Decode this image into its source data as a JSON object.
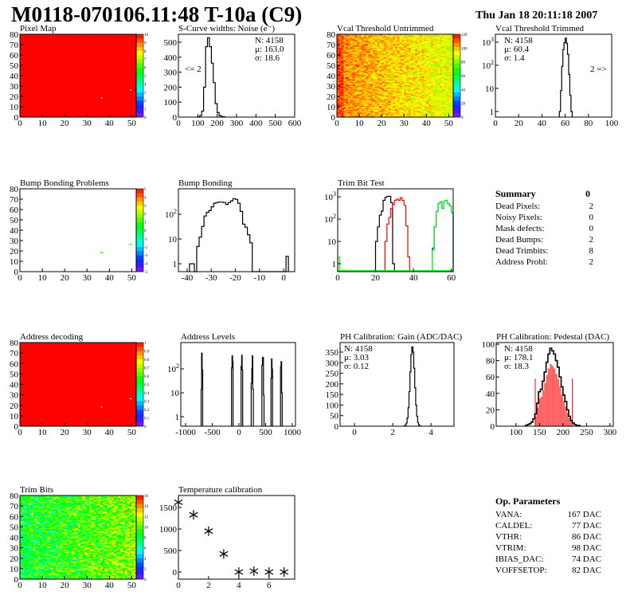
{
  "header": {
    "title": "M0118-070106.11:48 T-10a (C9)",
    "date": "Thu Jan 18 20:11:18 2007"
  },
  "summary": {
    "title": "Summary",
    "value": "0",
    "rows": [
      {
        "label": "Dead Pixels:",
        "value": "2"
      },
      {
        "label": "Noisy Pixels:",
        "value": "0"
      },
      {
        "label": "Mask defects:",
        "value": "0"
      },
      {
        "label": "Dead Bumps:",
        "value": "2"
      },
      {
        "label": "Dead Trimbits:",
        "value": "8"
      },
      {
        "label": "Address Probl:",
        "value": "2"
      }
    ]
  },
  "op_parameters": {
    "title": "Op. Parameters",
    "rows": [
      {
        "label": "VANA:",
        "value": "167 DAC"
      },
      {
        "label": "CALDEL:",
        "value": "77 DAC"
      },
      {
        "label": "VTHR:",
        "value": "86 DAC"
      },
      {
        "label": "VTRIM:",
        "value": "98 DAC"
      },
      {
        "label": "IBIAS_DAC:",
        "value": "74 DAC"
      },
      {
        "label": "VOFFSETOP:",
        "value": "82 DAC"
      }
    ]
  },
  "chart_data": [
    {
      "id": "pixel_map",
      "type": "heatmap",
      "title": "Pixel Map",
      "xlim": [
        0,
        52
      ],
      "ylim": [
        0,
        80
      ],
      "zlim": [
        0,
        10
      ],
      "xticks": [
        0,
        10,
        20,
        30,
        40,
        50
      ],
      "yticks": [
        0,
        10,
        20,
        30,
        40,
        50,
        60,
        70,
        80
      ],
      "zticks": [
        "0",
        "1",
        "2",
        "3",
        "4",
        "5",
        "6",
        "7",
        "8",
        "9",
        "10"
      ],
      "base_value": 10,
      "special_pixels": [
        {
          "col": 36,
          "row": 18,
          "value": null
        },
        {
          "col": 49,
          "row": 26,
          "value": null
        }
      ]
    },
    {
      "id": "noise",
      "type": "bar",
      "title": "S-Curve widths: Noise (e⁻)",
      "xlim": [
        0,
        600
      ],
      "ylim": [
        0,
        553
      ],
      "log": false,
      "xticks": [
        0,
        100,
        200,
        300,
        400,
        500,
        600
      ],
      "yticks": [
        0,
        100,
        200,
        300,
        400,
        500
      ],
      "series": [
        {
          "name": "noise",
          "color": "#000000",
          "bin_width": 10,
          "start": 100,
          "values": [
            2,
            10,
            40,
            200,
            470,
            530,
            470,
            360,
            230,
            90,
            30,
            10,
            4,
            2
          ]
        }
      ],
      "stats": [
        "N: 4158",
        "μ: 163.0",
        "σ: 18.6"
      ],
      "annotation": "<= 2"
    },
    {
      "id": "vcal_untrimmed",
      "type": "heatmap",
      "title": "Vcal Threshold Untrimmed",
      "xlim": [
        0,
        52
      ],
      "ylim": [
        0,
        80
      ],
      "zlim": [
        0,
        120
      ],
      "xticks": [
        0,
        10,
        20,
        30,
        40,
        50
      ],
      "yticks": [
        0,
        10,
        20,
        30,
        40,
        50,
        60,
        70,
        80
      ],
      "zticks": [
        "0",
        "20",
        "40",
        "60",
        "80",
        "100",
        "120"
      ],
      "gradient": {
        "mean_left": 106,
        "mean_right": 90,
        "spread": 9
      },
      "special_pixels": [
        {
          "col": 36,
          "row": 18,
          "value": null
        },
        {
          "col": 49,
          "row": 26,
          "value": null
        }
      ]
    },
    {
      "id": "vcal_trimmed",
      "type": "bar",
      "title": "Vcal Threshold Trimmed",
      "xlim": [
        0,
        100
      ],
      "ylim": [
        0.57,
        2200
      ],
      "log": true,
      "xticks": [
        0,
        20,
        40,
        60,
        80,
        100
      ],
      "yticks": [
        1,
        10,
        100,
        1000
      ],
      "ytick_labels": [
        "1",
        "10",
        "10^2",
        "10^3"
      ],
      "series": [
        {
          "name": "trimmed",
          "color": "#000000",
          "bin_width": 1,
          "start": 55,
          "values": [
            1,
            8,
            90,
            480,
            950,
            1500,
            900,
            300,
            40,
            5,
            1
          ]
        }
      ],
      "stats": [
        "N: 4158",
        "μ: 60.4",
        "σ:  1.4"
      ],
      "annotation": "2 =>"
    },
    {
      "id": "bump_map",
      "type": "heatmap",
      "title": "Bump Bonding Problems",
      "xlim": [
        0,
        52
      ],
      "ylim": [
        0,
        80
      ],
      "zlim": [
        -5,
        5
      ],
      "xticks": [
        0,
        10,
        20,
        30,
        40,
        50
      ],
      "yticks": [
        0,
        10,
        20,
        30,
        40,
        50,
        60,
        70,
        80
      ],
      "zticks": [
        "-5",
        "-4",
        "-3",
        "-2",
        "-1",
        "0",
        "1",
        "2",
        "3",
        "4",
        "5"
      ],
      "base_value": null,
      "special_pixels": [
        {
          "col": 36,
          "row": 18,
          "value": 1
        },
        {
          "col": 49,
          "row": 26,
          "value": 1
        }
      ]
    },
    {
      "id": "bump_bonding",
      "type": "bar",
      "title": "Bump Bonding",
      "xlim": [
        -43.6,
        4.6
      ],
      "ylim": [
        0.48,
        1070
      ],
      "log": true,
      "xticks": [
        -40,
        -30,
        -20,
        -10,
        0
      ],
      "yticks": [
        1,
        10,
        100
      ],
      "ytick_labels": [
        "1",
        "10",
        "10^2"
      ],
      "series": [
        {
          "name": "bump",
          "color": "#000000",
          "bin_width": 1,
          "start": -39,
          "values": [
            1,
            1,
            0,
            5,
            12,
            32,
            85,
            120,
            140,
            200,
            280,
            300,
            310,
            310,
            300,
            250,
            300,
            350,
            430,
            400,
            280,
            130,
            40,
            30,
            15,
            7,
            0,
            0,
            0,
            0,
            0,
            0,
            0,
            0,
            0,
            0,
            0,
            0,
            0,
            0,
            2
          ]
        }
      ]
    },
    {
      "id": "trim_bit_test",
      "type": "bar",
      "title": "Trim Bit Test",
      "xlim": [
        0,
        61
      ],
      "ylim": [
        0.44,
        2300
      ],
      "log": true,
      "xticks": [
        0,
        20,
        40,
        60
      ],
      "yticks": [
        1,
        10,
        100,
        1000
      ],
      "ytick_labels": [
        "1",
        "10",
        "10^2",
        "10^3"
      ],
      "series": [
        {
          "name": "trim bit 1",
          "color": "#000000",
          "bin_width": 1,
          "start": 20,
          "values": [
            10,
            45,
            150,
            230,
            700,
            950,
            1050,
            1050,
            550,
            1
          ]
        },
        {
          "name": "trim bit 2",
          "color": "#ff0000",
          "bin_width": 1,
          "start": 25,
          "values": [
            10,
            60,
            120,
            300,
            450,
            700,
            780,
            700,
            920,
            700,
            420,
            50,
            2
          ]
        },
        {
          "name": "trim bit 3",
          "color": "#0000ff",
          "bin_width": 1,
          "start": 50,
          "values": [
            5,
            45,
            220,
            500,
            600,
            300,
            650,
            700,
            500,
            400,
            200
          ]
        },
        {
          "name": "trim bit 4",
          "color": "#00ff00",
          "bin_width": 1,
          "start": 50,
          "values": [
            4,
            45,
            220,
            500,
            600,
            300,
            650,
            700,
            500,
            400,
            200
          ],
          "extra": [
            [
              0,
              2
            ]
          ]
        }
      ]
    },
    {
      "id": "address_decoding",
      "type": "heatmap",
      "title": "Address decoding",
      "xlim": [
        0,
        52
      ],
      "ylim": [
        0,
        80
      ],
      "zlim": [
        0,
        1
      ],
      "xticks": [
        0,
        10,
        20,
        30,
        40,
        50
      ],
      "yticks": [
        0,
        10,
        20,
        30,
        40,
        50,
        60,
        70,
        80
      ],
      "zticks": [
        "0",
        "0.1",
        "0.2",
        "0.3",
        "0.4",
        "0.5",
        "0.6",
        "0.7",
        "0.8",
        "0.9",
        "1"
      ],
      "base_value": 1,
      "special_pixels": [
        {
          "col": 36,
          "row": 18,
          "value": null
        },
        {
          "col": 49,
          "row": 26,
          "value": null
        }
      ]
    },
    {
      "id": "address_levels",
      "type": "bar",
      "title": "Address Levels",
      "xlim": [
        -1090,
        1060
      ],
      "ylim": [
        0.4,
        1260
      ],
      "log": true,
      "xticks": [
        -1000,
        -500,
        0,
        500,
        1000
      ],
      "yticks": [
        1,
        10,
        100
      ],
      "ytick_labels": [
        "1",
        "10",
        "10^2"
      ],
      "series": [
        {
          "name": "levels",
          "color": "#000000",
          "bin_width": 10,
          "bins": [
            [
              -710,
              14
            ],
            [
              -700,
              450
            ],
            [
              -690,
              90
            ],
            [
              -140,
              110
            ],
            [
              -130,
              350
            ],
            [
              -120,
              200
            ],
            [
              40,
              130
            ],
            [
              50,
              370
            ],
            [
              60,
              90
            ],
            [
              230,
              25
            ],
            [
              240,
              100
            ],
            [
              250,
              350
            ],
            [
              260,
              14
            ],
            [
              430,
              140
            ],
            [
              440,
              300
            ],
            [
              450,
              300
            ],
            [
              460,
              8
            ],
            [
              600,
              40
            ],
            [
              610,
              260
            ],
            [
              620,
              100
            ],
            [
              780,
              120
            ],
            [
              790,
              200
            ],
            [
              800,
              10
            ]
          ]
        }
      ]
    },
    {
      "id": "ph_gain",
      "type": "bar",
      "title": "PH Calibration: Gain (ADC/DAC)",
      "xlim": [
        -0.75,
        5.2
      ],
      "ylim": [
        0,
        395
      ],
      "log": false,
      "xticks": [
        0,
        2,
        4
      ],
      "yticks": [
        0,
        50,
        100,
        150,
        200,
        250,
        300,
        350
      ],
      "series": [
        {
          "name": "gain",
          "color": "#000000",
          "bin_width": 0.05,
          "start": 2.6,
          "values": [
            1,
            5,
            15,
            39,
            87,
            163,
            256,
            338,
            375,
            350,
            274,
            181,
            100,
            47,
            18,
            6,
            2
          ]
        }
      ],
      "stats": [
        "N: 4158",
        "μ: 3.03",
        "σ: 0.12"
      ]
    },
    {
      "id": "ph_pedestal",
      "type": "bar",
      "title": "PH Calibration: Pedestal (DAC)",
      "xlim": [
        58,
        307
      ],
      "ylim": [
        0,
        102
      ],
      "log": false,
      "xticks": [
        100,
        150,
        200,
        250,
        300
      ],
      "yticks": [
        0,
        20,
        40,
        60,
        80,
        100
      ],
      "series": [
        {
          "name": "pedestal",
          "color": "#000000",
          "bin_width": 4,
          "start": 120,
          "values": [
            1,
            2,
            3,
            5,
            9,
            15,
            28,
            42,
            45,
            55,
            66,
            78,
            88,
            95,
            92,
            88,
            80,
            72,
            60,
            48,
            38,
            30,
            20,
            12,
            7,
            4,
            2,
            1,
            1
          ]
        }
      ],
      "fit_range": [
        141,
        220
      ],
      "fit_line_height": 58,
      "stats": [
        "N: 4158",
        "μ: 178.1",
        "σ: 18.3"
      ],
      "stats_colors": [
        "#000000",
        "#ff0000",
        "#ff0000"
      ]
    },
    {
      "id": "trim_bits",
      "type": "heatmap",
      "title": "Trim Bits",
      "xlim": [
        0,
        52
      ],
      "ylim": [
        0,
        80
      ],
      "zlim": [
        0,
        16
      ],
      "xticks": [
        0,
        10,
        20,
        30,
        40,
        50
      ],
      "yticks": [
        0,
        10,
        20,
        30,
        40,
        50,
        60,
        70,
        80
      ],
      "zticks": [
        "0",
        "2",
        "4",
        "6",
        "8",
        "10",
        "12",
        "14",
        "16"
      ],
      "gradient": {
        "mean_left": 8.3,
        "mean_right": 10.8,
        "spread": 2.6
      },
      "special_pixels": [
        {
          "col": 36,
          "row": 18,
          "value": null
        },
        {
          "col": 49,
          "row": 26,
          "value": null
        }
      ]
    },
    {
      "id": "temperature",
      "type": "scatter",
      "title": "Temperature calibration",
      "xlim": [
        0,
        7.7
      ],
      "ylim": [
        -167,
        1778
      ],
      "xticks": [
        0,
        2,
        4,
        6
      ],
      "yticks": [
        0,
        500,
        1000,
        1500
      ],
      "x": [
        0,
        1,
        2,
        3,
        4,
        5,
        6,
        7
      ],
      "y": [
        1620,
        1330,
        950,
        420,
        0,
        20,
        0,
        0
      ]
    }
  ]
}
